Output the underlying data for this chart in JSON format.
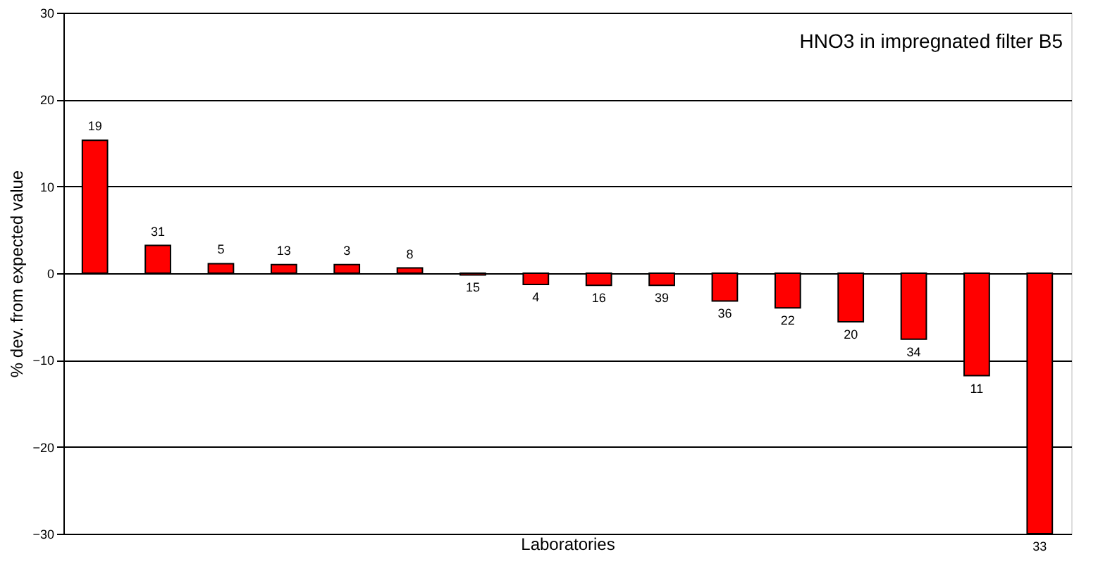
{
  "chart_data": {
    "type": "bar",
    "xlabel": "Laboratories",
    "ylabel": "% dev. from expected value",
    "annotations": [
      "HNO3 in impregnated filter B5"
    ],
    "categories": [
      "19",
      "31",
      "5",
      "13",
      "3",
      "8",
      "15",
      "4",
      "16",
      "39",
      "36",
      "22",
      "20",
      "34",
      "11",
      "33"
    ],
    "values": [
      15.3,
      3.2,
      1.1,
      1.0,
      1.0,
      0.6,
      -0.2,
      -1.3,
      -1.4,
      -1.4,
      -3.2,
      -4.0,
      -5.6,
      -7.6,
      -11.8,
      -30
    ],
    "color": "#ff0000",
    "ylim": [
      -30,
      30
    ],
    "yticks": [
      -30,
      -20,
      -10,
      0,
      10,
      20,
      30
    ],
    "grid": "y",
    "tick_labels": "y"
  }
}
